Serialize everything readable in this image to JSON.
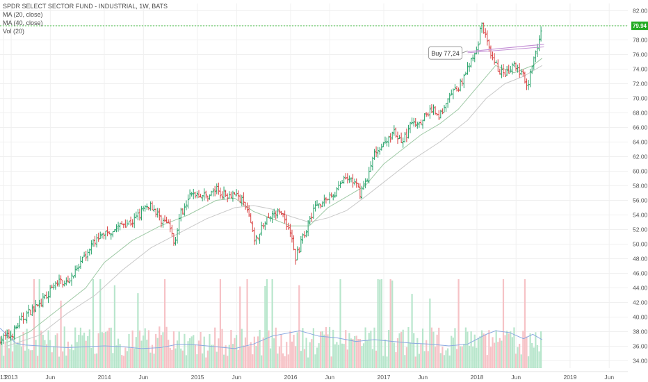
{
  "legend": {
    "title": "SPDR SELECT SECTOR FUND - INDUSTRIAL, 1W, BATS",
    "ma20": "MA (20, close)",
    "ma40": "MA (40, close)",
    "vol": "Vol (20)"
  },
  "colors": {
    "up": "#26a269",
    "down": "#d94040",
    "volUp": "#b8e6cc",
    "volDown": "#f6c2c6",
    "ma20": "#9ec9a5",
    "ma40": "#c9c9c9",
    "volMa": "#8aa8e0",
    "priceLine": "#2fbf2f",
    "priceTag": "#1faa1f",
    "trendline": "#c592d6",
    "grid": "#f0f0f0"
  },
  "chart_data": {
    "type": "ohlc",
    "ylim": [
      33,
      83
    ],
    "y_ticks": [
      "82.00",
      "80.00",
      "78.00",
      "76.00",
      "74.00",
      "72.00",
      "70.00",
      "68.00",
      "66.00",
      "64.00",
      "62.00",
      "60.00",
      "58.00",
      "56.00",
      "54.00",
      "52.00",
      "50.00",
      "48.00",
      "46.00",
      "44.00",
      "42.00",
      "40.00",
      "38.00",
      "36.00",
      "34.00"
    ],
    "x_ticks": [
      {
        "label": "13",
        "t": 2012.92
      },
      {
        "label": "2013",
        "t": 2013.0
      },
      {
        "label": "Jun",
        "t": 2013.42
      },
      {
        "label": "2014",
        "t": 2014.0
      },
      {
        "label": "Jun",
        "t": 2014.42
      },
      {
        "label": "2015",
        "t": 2015.0
      },
      {
        "label": "Jun",
        "t": 2015.42
      },
      {
        "label": "2016",
        "t": 2016.0
      },
      {
        "label": "Jun",
        "t": 2016.42
      },
      {
        "label": "2017",
        "t": 2017.0
      },
      {
        "label": "Jun",
        "t": 2017.42
      },
      {
        "label": "2018",
        "t": 2018.0
      },
      {
        "label": "Jun",
        "t": 2018.42
      },
      {
        "label": "2019",
        "t": 2019.0
      },
      {
        "label": "Jun",
        "t": 2019.42
      }
    ],
    "close_path": [
      [
        2012.88,
        37.0
      ],
      [
        2013.0,
        37.5
      ],
      [
        2013.1,
        39.5
      ],
      [
        2013.2,
        40.8
      ],
      [
        2013.3,
        41.5
      ],
      [
        2013.4,
        43.2
      ],
      [
        2013.5,
        44.8
      ],
      [
        2013.6,
        45.0
      ],
      [
        2013.7,
        46.2
      ],
      [
        2013.8,
        48.5
      ],
      [
        2013.9,
        50.5
      ],
      [
        2014.0,
        51.5
      ],
      [
        2014.1,
        52.0
      ],
      [
        2014.2,
        52.8
      ],
      [
        2014.3,
        53.0
      ],
      [
        2014.4,
        54.5
      ],
      [
        2014.5,
        55.5
      ],
      [
        2014.6,
        53.5
      ],
      [
        2014.7,
        52.5
      ],
      [
        2014.75,
        50.0
      ],
      [
        2014.8,
        53.5
      ],
      [
        2014.9,
        56.5
      ],
      [
        2015.0,
        57.0
      ],
      [
        2015.1,
        56.5
      ],
      [
        2015.2,
        57.5
      ],
      [
        2015.3,
        56.8
      ],
      [
        2015.4,
        57.0
      ],
      [
        2015.5,
        55.5
      ],
      [
        2015.55,
        54.0
      ],
      [
        2015.62,
        50.5
      ],
      [
        2015.7,
        52.5
      ],
      [
        2015.8,
        54.0
      ],
      [
        2015.9,
        54.5
      ],
      [
        2016.0,
        51.5
      ],
      [
        2016.05,
        48.0
      ],
      [
        2016.15,
        51.5
      ],
      [
        2016.25,
        55.0
      ],
      [
        2016.35,
        56.0
      ],
      [
        2016.45,
        56.5
      ],
      [
        2016.55,
        58.5
      ],
      [
        2016.65,
        59.0
      ],
      [
        2016.75,
        57.0
      ],
      [
        2016.85,
        60.0
      ],
      [
        2016.9,
        62.5
      ],
      [
        2016.95,
        63.5
      ],
      [
        2017.0,
        63.5
      ],
      [
        2017.1,
        65.5
      ],
      [
        2017.2,
        64.0
      ],
      [
        2017.3,
        66.5
      ],
      [
        2017.4,
        67.0
      ],
      [
        2017.5,
        68.5
      ],
      [
        2017.6,
        67.5
      ],
      [
        2017.7,
        70.0
      ],
      [
        2017.8,
        71.5
      ],
      [
        2017.9,
        74.0
      ],
      [
        2018.0,
        76.5
      ],
      [
        2018.05,
        80.5
      ],
      [
        2018.1,
        78.0
      ],
      [
        2018.15,
        75.5
      ],
      [
        2018.2,
        74.5
      ],
      [
        2018.3,
        73.0
      ],
      [
        2018.4,
        74.5
      ],
      [
        2018.5,
        73.0
      ],
      [
        2018.55,
        72.0
      ],
      [
        2018.6,
        75.5
      ],
      [
        2018.65,
        77.0
      ],
      [
        2018.7,
        79.94
      ]
    ],
    "ma20_path": [
      [
        2012.95,
        36.5
      ],
      [
        2013.2,
        38.0
      ],
      [
        2013.5,
        41.0
      ],
      [
        2013.8,
        44.0
      ],
      [
        2014.0,
        47.5
      ],
      [
        2014.3,
        50.5
      ],
      [
        2014.6,
        52.5
      ],
      [
        2014.9,
        54.0
      ],
      [
        2015.2,
        56.0
      ],
      [
        2015.4,
        56.3
      ],
      [
        2015.6,
        54.5
      ],
      [
        2015.8,
        53.5
      ],
      [
        2016.0,
        52.5
      ],
      [
        2016.2,
        52.5
      ],
      [
        2016.4,
        55.0
      ],
      [
        2016.6,
        56.5
      ],
      [
        2016.8,
        58.0
      ],
      [
        2017.0,
        61.0
      ],
      [
        2017.2,
        63.0
      ],
      [
        2017.4,
        65.0
      ],
      [
        2017.6,
        66.5
      ],
      [
        2017.8,
        68.5
      ],
      [
        2018.0,
        71.5
      ],
      [
        2018.2,
        74.5
      ],
      [
        2018.4,
        73.5
      ],
      [
        2018.6,
        74.5
      ],
      [
        2018.7,
        75.5
      ]
    ],
    "ma40_path": [
      [
        2012.95,
        36.0
      ],
      [
        2013.3,
        37.5
      ],
      [
        2013.6,
        40.5
      ],
      [
        2013.9,
        43.0
      ],
      [
        2014.2,
        46.5
      ],
      [
        2014.5,
        49.5
      ],
      [
        2014.8,
        51.5
      ],
      [
        2015.1,
        53.5
      ],
      [
        2015.4,
        55.0
      ],
      [
        2015.6,
        55.3
      ],
      [
        2015.8,
        54.8
      ],
      [
        2016.0,
        53.8
      ],
      [
        2016.2,
        53.0
      ],
      [
        2016.4,
        53.6
      ],
      [
        2016.6,
        54.6
      ],
      [
        2016.8,
        56.5
      ],
      [
        2017.0,
        58.5
      ],
      [
        2017.3,
        61.5
      ],
      [
        2017.6,
        64.0
      ],
      [
        2017.9,
        67.0
      ],
      [
        2018.1,
        70.0
      ],
      [
        2018.3,
        72.0
      ],
      [
        2018.5,
        73.0
      ],
      [
        2018.7,
        74.5
      ]
    ],
    "trendline": [
      [
        2017.9,
        76.4
      ],
      [
        2018.72,
        77.4
      ]
    ],
    "last_price": "79.94",
    "annotation": "Buy 77,24",
    "annotation_anchor": [
      2017.87,
      76.5
    ]
  },
  "volume": {
    "ma_path": [
      [
        2012.88,
        0.45
      ],
      [
        2012.95,
        0.38
      ],
      [
        2013.05,
        0.28
      ],
      [
        2013.15,
        0.26
      ],
      [
        2013.3,
        0.25
      ],
      [
        2013.45,
        0.24
      ],
      [
        2013.6,
        0.23
      ],
      [
        2013.8,
        0.24
      ],
      [
        2014.0,
        0.25
      ],
      [
        2014.2,
        0.24
      ],
      [
        2014.4,
        0.22
      ],
      [
        2014.6,
        0.23
      ],
      [
        2014.8,
        0.27
      ],
      [
        2015.0,
        0.26
      ],
      [
        2015.2,
        0.24
      ],
      [
        2015.4,
        0.22
      ],
      [
        2015.6,
        0.27
      ],
      [
        2015.8,
        0.36
      ],
      [
        2016.0,
        0.4
      ],
      [
        2016.1,
        0.42
      ],
      [
        2016.3,
        0.36
      ],
      [
        2016.5,
        0.34
      ],
      [
        2016.7,
        0.3
      ],
      [
        2016.9,
        0.32
      ],
      [
        2017.1,
        0.3
      ],
      [
        2017.3,
        0.28
      ],
      [
        2017.5,
        0.27
      ],
      [
        2017.7,
        0.25
      ],
      [
        2017.9,
        0.27
      ],
      [
        2018.1,
        0.38
      ],
      [
        2018.2,
        0.42
      ],
      [
        2018.35,
        0.4
      ],
      [
        2018.5,
        0.33
      ],
      [
        2018.6,
        0.38
      ],
      [
        2018.7,
        0.32
      ]
    ]
  }
}
